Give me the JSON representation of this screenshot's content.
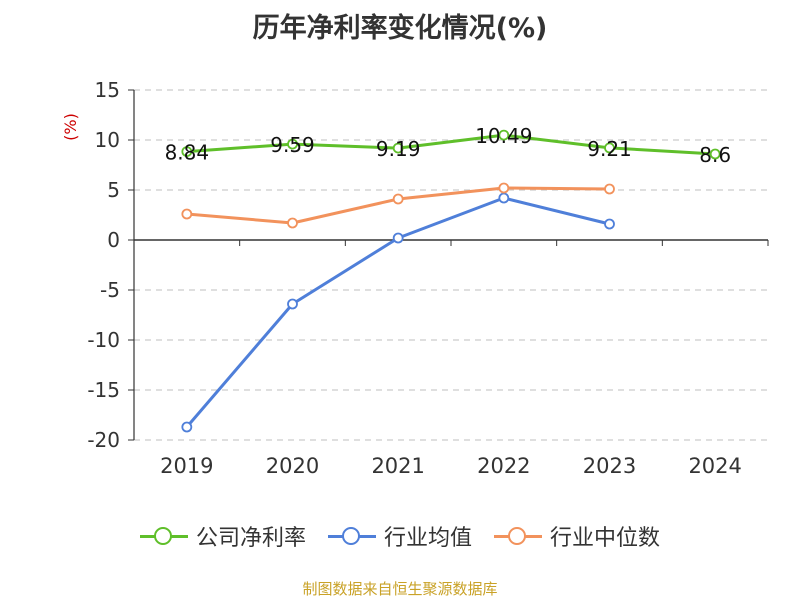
{
  "title": "历年净利率变化情况(%)",
  "source_text": "制图数据来自恒生聚源数据库",
  "colors": {
    "company": "#5fbf2a",
    "industry_avg": "#4f7fd9",
    "industry_median": "#f2925c",
    "grid": "#cccccc",
    "axis": "#333333",
    "ylabel": "#cc0000",
    "source": "#c9a227"
  },
  "chart_data": {
    "type": "line",
    "title": "历年净利率变化情况(%)",
    "ylabel": "(%)",
    "xlabel": "",
    "categories": [
      "2019",
      "2020",
      "2021",
      "2022",
      "2023",
      "2024"
    ],
    "ylim": [
      -20,
      15
    ],
    "yticks": [
      15,
      10,
      5,
      0,
      -5,
      -10,
      -15,
      -20
    ],
    "grid": true,
    "legend_position": "bottom",
    "series": [
      {
        "name": "公司净利率",
        "values": [
          8.84,
          9.59,
          9.19,
          10.49,
          9.21,
          8.6
        ],
        "show_labels": true
      },
      {
        "name": "行业均值",
        "values": [
          -18.7,
          -6.4,
          0.2,
          4.2,
          1.6,
          null
        ],
        "show_labels": false
      },
      {
        "name": "行业中位数",
        "values": [
          2.6,
          1.7,
          4.1,
          5.2,
          5.1,
          null
        ],
        "show_labels": false
      }
    ],
    "data_labels": [
      "8.84",
      "9.59",
      "9.19",
      "10.49",
      "9.21",
      "8.6"
    ]
  }
}
